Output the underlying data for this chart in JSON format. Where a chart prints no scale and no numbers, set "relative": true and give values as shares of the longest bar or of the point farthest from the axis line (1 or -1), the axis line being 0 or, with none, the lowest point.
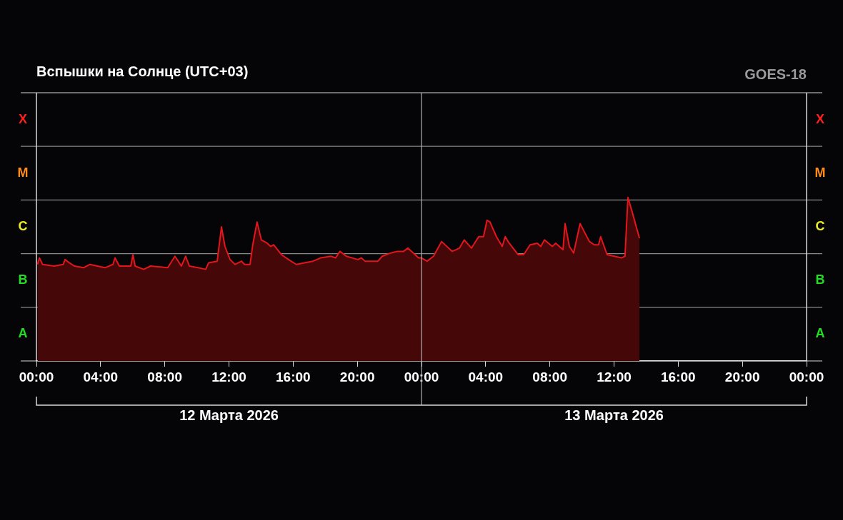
{
  "chart_data": {
    "type": "area",
    "title": "Вспышки на Солнце (UTC+03)",
    "relative": true,
    "annotations": [
      "GOES-18",
      "12 Марта 2026",
      "13 Марта 2026",
      "A",
      "B",
      "C",
      "M",
      "X",
      "A",
      "B",
      "C",
      "M",
      "X"
    ],
    "xlim": [
      "2026-03-12T00:00",
      "2026-03-14T00:00"
    ],
    "xticks": [
      {
        "value": "2026-03-12T00:00",
        "label": "00:00"
      },
      {
        "value": "2026-03-12T04:00",
        "label": "04:00"
      },
      {
        "value": "2026-03-12T08:00",
        "label": "08:00"
      },
      {
        "value": "2026-03-12T12:00",
        "label": "12:00"
      },
      {
        "value": "2026-03-12T16:00",
        "label": "16:00"
      },
      {
        "value": "2026-03-12T20:00",
        "label": "20:00"
      },
      {
        "value": "2026-03-13T00:00",
        "label": "00:00"
      },
      {
        "value": "2026-03-13T04:00",
        "label": "04:00"
      },
      {
        "value": "2026-03-13T08:00",
        "label": "08:00"
      },
      {
        "value": "2026-03-13T12:00",
        "label": "12:00"
      },
      {
        "value": "2026-03-13T16:00",
        "label": "16:00"
      },
      {
        "value": "2026-03-13T20:00",
        "label": "20:00"
      },
      {
        "value": "2026-03-14T00:00",
        "label": "00:00"
      }
    ],
    "grid": "y",
    "legend": false,
    "marker": "none",
    "ref_lines": [
      {
        "axis": "x",
        "value": "2026-03-13T00:00",
        "color": "#b0b0b0"
      }
    ],
    "x": [
      "2026-03-12T00:04",
      "2026-03-12T00:11",
      "2026-03-12T00:23",
      "2026-03-12T01:06",
      "2026-03-12T01:40",
      "2026-03-12T01:47",
      "2026-03-12T02:03",
      "2026-03-12T02:22",
      "2026-03-12T02:56",
      "2026-03-12T03:20",
      "2026-03-12T04:16",
      "2026-03-12T04:46",
      "2026-03-12T04:54",
      "2026-03-12T05:10",
      "2026-03-12T05:53",
      "2026-03-12T06:01",
      "2026-03-12T06:09",
      "2026-03-12T06:41",
      "2026-03-12T07:07",
      "2026-03-12T08:11",
      "2026-03-12T08:38",
      "2026-03-12T09:02",
      "2026-03-12T09:18",
      "2026-03-12T09:32",
      "2026-03-12T10:04",
      "2026-03-12T10:33",
      "2026-03-12T10:44",
      "2026-03-12T11:16",
      "2026-03-12T11:32",
      "2026-03-12T11:45",
      "2026-03-12T12:04",
      "2026-03-12T12:23",
      "2026-03-12T12:47",
      "2026-03-12T12:58",
      "2026-03-12T13:19",
      "2026-03-12T13:29",
      "2026-03-12T13:45",
      "2026-03-12T14:01",
      "2026-03-12T14:23",
      "2026-03-12T14:36",
      "2026-03-12T14:47",
      "2026-03-12T15:16",
      "2026-03-12T15:43",
      "2026-03-12T16:12",
      "2026-03-12T16:42",
      "2026-03-12T17:14",
      "2026-03-12T17:43",
      "2026-03-12T18:21",
      "2026-03-12T18:39",
      "2026-03-12T18:55",
      "2026-03-12T19:19",
      "2026-03-12T20:02",
      "2026-03-12T20:15",
      "2026-03-12T20:29",
      "2026-03-12T21:17",
      "2026-03-12T21:33",
      "2026-03-12T22:05",
      "2026-03-12T22:29",
      "2026-03-12T22:53",
      "2026-03-12T23:09",
      "2026-03-12T23:49",
      "2026-03-13T00:00",
      "2026-03-13T00:21",
      "2026-03-13T00:45",
      "2026-03-13T01:15",
      "2026-03-13T01:55",
      "2026-03-13T02:22",
      "2026-03-13T02:40",
      "2026-03-13T03:07",
      "2026-03-13T03:34",
      "2026-03-13T03:52",
      "2026-03-13T04:05",
      "2026-03-13T04:16",
      "2026-03-13T04:40",
      "2026-03-13T05:02",
      "2026-03-13T05:13",
      "2026-03-13T05:28",
      "2026-03-13T06:01",
      "2026-03-13T06:22",
      "2026-03-13T06:46",
      "2026-03-13T07:13",
      "2026-03-13T07:26",
      "2026-03-13T07:40",
      "2026-03-13T08:09",
      "2026-03-13T08:22",
      "2026-03-13T08:49",
      "2026-03-13T08:57",
      "2026-03-13T09:13",
      "2026-03-13T09:29",
      "2026-03-13T09:53",
      "2026-03-13T10:28",
      "2026-03-13T10:46",
      "2026-03-13T11:02",
      "2026-03-13T11:10",
      "2026-03-13T11:34",
      "2026-03-13T12:28",
      "2026-03-13T12:41",
      "2026-03-13T12:52",
      "2026-03-13T13:08",
      "2026-03-13T13:35"
    ],
    "series": [
      {
        "color": "#e3161c",
        "values": [
          0.59,
          0.63,
          0.59,
          0.58,
          0.59,
          0.62,
          0.6,
          0.58,
          0.57,
          0.59,
          0.57,
          0.59,
          0.63,
          0.58,
          0.58,
          0.65,
          0.58,
          0.56,
          0.58,
          0.57,
          0.64,
          0.58,
          0.64,
          0.58,
          0.57,
          0.56,
          0.6,
          0.61,
          0.82,
          0.7,
          0.62,
          0.59,
          0.61,
          0.59,
          0.59,
          0.71,
          0.85,
          0.74,
          0.72,
          0.7,
          0.71,
          0.65,
          0.62,
          0.59,
          0.6,
          0.61,
          0.63,
          0.64,
          0.63,
          0.67,
          0.64,
          0.62,
          0.63,
          0.61,
          0.61,
          0.64,
          0.66,
          0.67,
          0.67,
          0.69,
          0.63,
          0.63,
          0.61,
          0.64,
          0.73,
          0.67,
          0.69,
          0.74,
          0.69,
          0.76,
          0.76,
          0.86,
          0.85,
          0.76,
          0.7,
          0.76,
          0.72,
          0.65,
          0.65,
          0.71,
          0.72,
          0.7,
          0.74,
          0.7,
          0.72,
          0.68,
          0.84,
          0.7,
          0.66,
          0.84,
          0.73,
          0.71,
          0.71,
          0.76,
          0.65,
          0.63,
          0.64,
          1,
          0.91,
          0.75
        ]
      }
    ]
  }
}
